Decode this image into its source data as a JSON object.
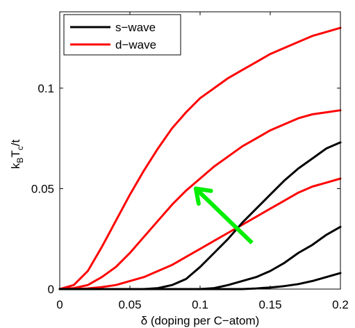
{
  "chart_data": {
    "type": "line",
    "xlabel": "δ (doping per C−atom)",
    "ylabel": {
      "k": "k",
      "B": "B",
      "T": "T",
      "c": "c",
      "tail": "/t"
    },
    "xlim": [
      0,
      0.2
    ],
    "ylim": [
      0,
      0.138
    ],
    "x_ticks": [
      0,
      0.05,
      0.1,
      0.15,
      0.2
    ],
    "x_tick_labels": [
      "0",
      "0.05",
      "0.1",
      "0.15",
      "0.2"
    ],
    "y_ticks": [
      0,
      0.05,
      0.1
    ],
    "y_tick_labels": [
      "0",
      "0.05",
      "0.1"
    ],
    "grid": false,
    "legend_position": "top-left",
    "legend": [
      {
        "label": "s−wave",
        "color": "#000000"
      },
      {
        "label": "d−wave",
        "color": "#ff0000"
      }
    ],
    "series": [
      {
        "name": "d−wave",
        "color": "#ff0000",
        "x": [
          0,
          0.01,
          0.02,
          0.03,
          0.04,
          0.05,
          0.06,
          0.07,
          0.08,
          0.09,
          0.1,
          0.11,
          0.12,
          0.13,
          0.14,
          0.15,
          0.16,
          0.17,
          0.18,
          0.19,
          0.2
        ],
        "y": [
          0,
          0.002,
          0.009,
          0.021,
          0.034,
          0.047,
          0.059,
          0.07,
          0.08,
          0.088,
          0.095,
          0.1,
          0.105,
          0.109,
          0.113,
          0.117,
          0.12,
          0.123,
          0.126,
          0.128,
          0.13
        ]
      },
      {
        "name": "d−wave",
        "color": "#ff0000",
        "x": [
          0,
          0.01,
          0.02,
          0.03,
          0.04,
          0.05,
          0.06,
          0.07,
          0.08,
          0.09,
          0.1,
          0.11,
          0.12,
          0.13,
          0.14,
          0.15,
          0.16,
          0.17,
          0.18,
          0.19,
          0.2
        ],
        "y": [
          0,
          0.0005,
          0.002,
          0.006,
          0.011,
          0.018,
          0.026,
          0.034,
          0.042,
          0.049,
          0.055,
          0.061,
          0.066,
          0.071,
          0.075,
          0.079,
          0.082,
          0.085,
          0.087,
          0.088,
          0.089
        ]
      },
      {
        "name": "d−wave",
        "color": "#ff0000",
        "x": [
          0,
          0.01,
          0.02,
          0.03,
          0.04,
          0.05,
          0.06,
          0.07,
          0.08,
          0.09,
          0.1,
          0.11,
          0.12,
          0.13,
          0.14,
          0.15,
          0.16,
          0.17,
          0.18,
          0.19,
          0.2
        ],
        "y": [
          0,
          0,
          0.0003,
          0.001,
          0.002,
          0.004,
          0.006,
          0.009,
          0.012,
          0.016,
          0.02,
          0.024,
          0.028,
          0.032,
          0.036,
          0.04,
          0.044,
          0.048,
          0.051,
          0.053,
          0.055
        ]
      },
      {
        "name": "s−wave",
        "color": "#000000",
        "x": [
          0,
          0.06,
          0.07,
          0.08,
          0.09,
          0.1,
          0.11,
          0.12,
          0.13,
          0.14,
          0.15,
          0.16,
          0.17,
          0.18,
          0.19,
          0.2
        ],
        "y": [
          0,
          0,
          0.0005,
          0.002,
          0.005,
          0.011,
          0.018,
          0.025,
          0.033,
          0.04,
          0.047,
          0.054,
          0.06,
          0.065,
          0.07,
          0.073
        ]
      },
      {
        "name": "s−wave",
        "color": "#000000",
        "x": [
          0,
          0.1,
          0.11,
          0.12,
          0.13,
          0.14,
          0.15,
          0.16,
          0.17,
          0.18,
          0.19,
          0.2
        ],
        "y": [
          0,
          0,
          0.0005,
          0.002,
          0.004,
          0.006,
          0.009,
          0.013,
          0.018,
          0.022,
          0.027,
          0.031
        ]
      },
      {
        "name": "s−wave",
        "color": "#000000",
        "x": [
          0,
          0.13,
          0.14,
          0.15,
          0.16,
          0.17,
          0.18,
          0.19,
          0.2
        ],
        "y": [
          0,
          0,
          0.0003,
          0.0008,
          0.0015,
          0.0025,
          0.004,
          0.006,
          0.008
        ]
      }
    ],
    "annotations": [
      {
        "type": "arrow",
        "color": "#00ee00",
        "from": [
          0.137,
          0.023
        ],
        "to": [
          0.097,
          0.05
        ]
      }
    ]
  }
}
